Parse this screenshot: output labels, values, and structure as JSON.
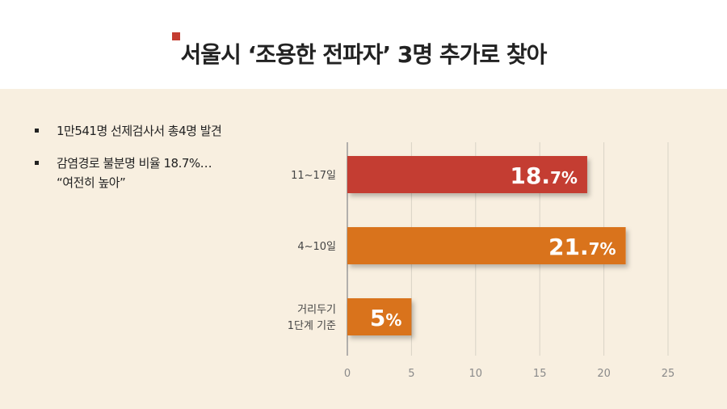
{
  "header": {
    "title": "서울시 ‘조용한 전파자’ 3명 추가로 찾아",
    "accent_color": "#c43d31"
  },
  "bullets": [
    {
      "lines": [
        "1만541명 선제검사서 총4명 발견"
      ]
    },
    {
      "lines": [
        "감염경로 불분명 비율 18.7%…",
        "“여전히 높아”"
      ]
    }
  ],
  "chart_data": {
    "type": "bar",
    "orientation": "horizontal",
    "categories": [
      [
        "11~17일"
      ],
      [
        "4~10일"
      ],
      [
        "거리두기",
        "1단계 기준"
      ]
    ],
    "values": [
      18.7,
      21.7,
      5
    ],
    "value_labels": [
      [
        "18.",
        "7%"
      ],
      [
        "21.",
        "7%"
      ],
      [
        "5",
        "%"
      ]
    ],
    "colors": [
      "#c43d31",
      "#d9731f",
      "#d9731f"
    ],
    "xlim": [
      0,
      25
    ],
    "xticks": [
      0,
      5,
      10,
      15,
      20,
      25
    ],
    "grid": true
  }
}
